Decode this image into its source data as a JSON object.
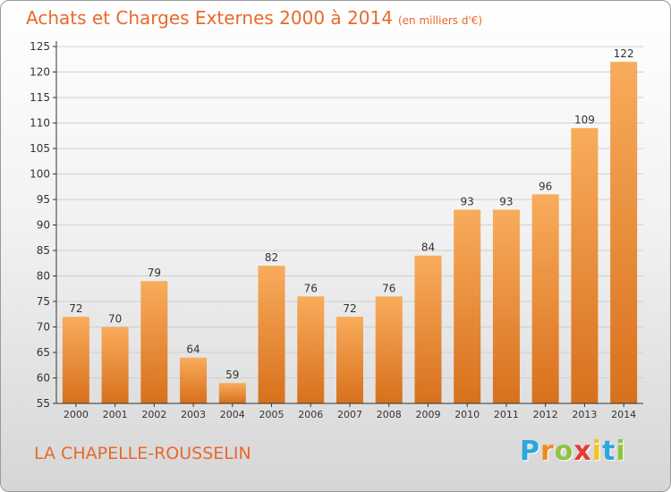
{
  "title": "Achats et Charges Externes 2000 à 2014",
  "subtitle": "(en milliers d'€)",
  "commune": "LA CHAPELLE-ROUSSELIN",
  "logo": {
    "letters": [
      "P",
      "r",
      "o",
      "x",
      "i",
      "t",
      "i"
    ],
    "colors": [
      "#2aa7dd",
      "#f08a1c",
      "#8cc63f",
      "#e63a2e",
      "#f7c21a",
      "#2aa7dd",
      "#8cc63f"
    ]
  },
  "colors": {
    "bar_light": "#f8ac5c",
    "bar_dark": "#d8701c",
    "text": "#e8692b"
  },
  "chart_data": {
    "type": "bar",
    "title": "Achats et Charges Externes 2000 à 2014",
    "subtitle": "(en milliers d'€)",
    "categories": [
      "2000",
      "2001",
      "2002",
      "2003",
      "2004",
      "2005",
      "2006",
      "2007",
      "2008",
      "2009",
      "2010",
      "2011",
      "2012",
      "2013",
      "2014"
    ],
    "values": [
      72,
      70,
      79,
      64,
      59,
      82,
      76,
      72,
      76,
      84,
      93,
      93,
      96,
      109,
      122
    ],
    "ylim": [
      55,
      125
    ],
    "yticks": [
      55,
      60,
      65,
      70,
      75,
      80,
      85,
      90,
      95,
      100,
      105,
      110,
      115,
      120,
      125
    ],
    "grid": true,
    "data_labels": true
  }
}
